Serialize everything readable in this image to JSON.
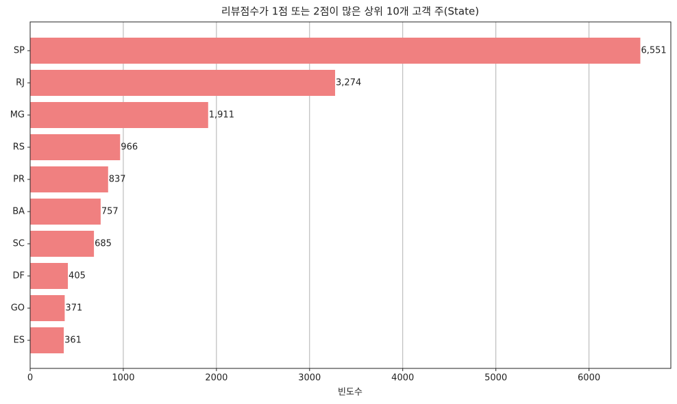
{
  "chart_data": {
    "type": "barh",
    "title": "리뷰점수가 1점 또는 2점이 많은 상위 10개 고객 주(State)",
    "x_label": "빈도수",
    "categories": [
      "SP",
      "RJ",
      "MG",
      "RS",
      "PR",
      "BA",
      "SC",
      "DF",
      "GO",
      "ES"
    ],
    "values": [
      6551,
      3274,
      1911,
      966,
      837,
      757,
      685,
      405,
      371,
      361
    ],
    "value_labels": [
      "6,551",
      "3,274",
      "1,911",
      "966",
      "837",
      "757",
      "685",
      "405",
      "371",
      "361"
    ],
    "color": "#f08080",
    "xlim": [
      0,
      6878.55
    ],
    "xticks": [
      0,
      1000,
      2000,
      3000,
      4000,
      5000,
      6000
    ],
    "grid": true
  }
}
